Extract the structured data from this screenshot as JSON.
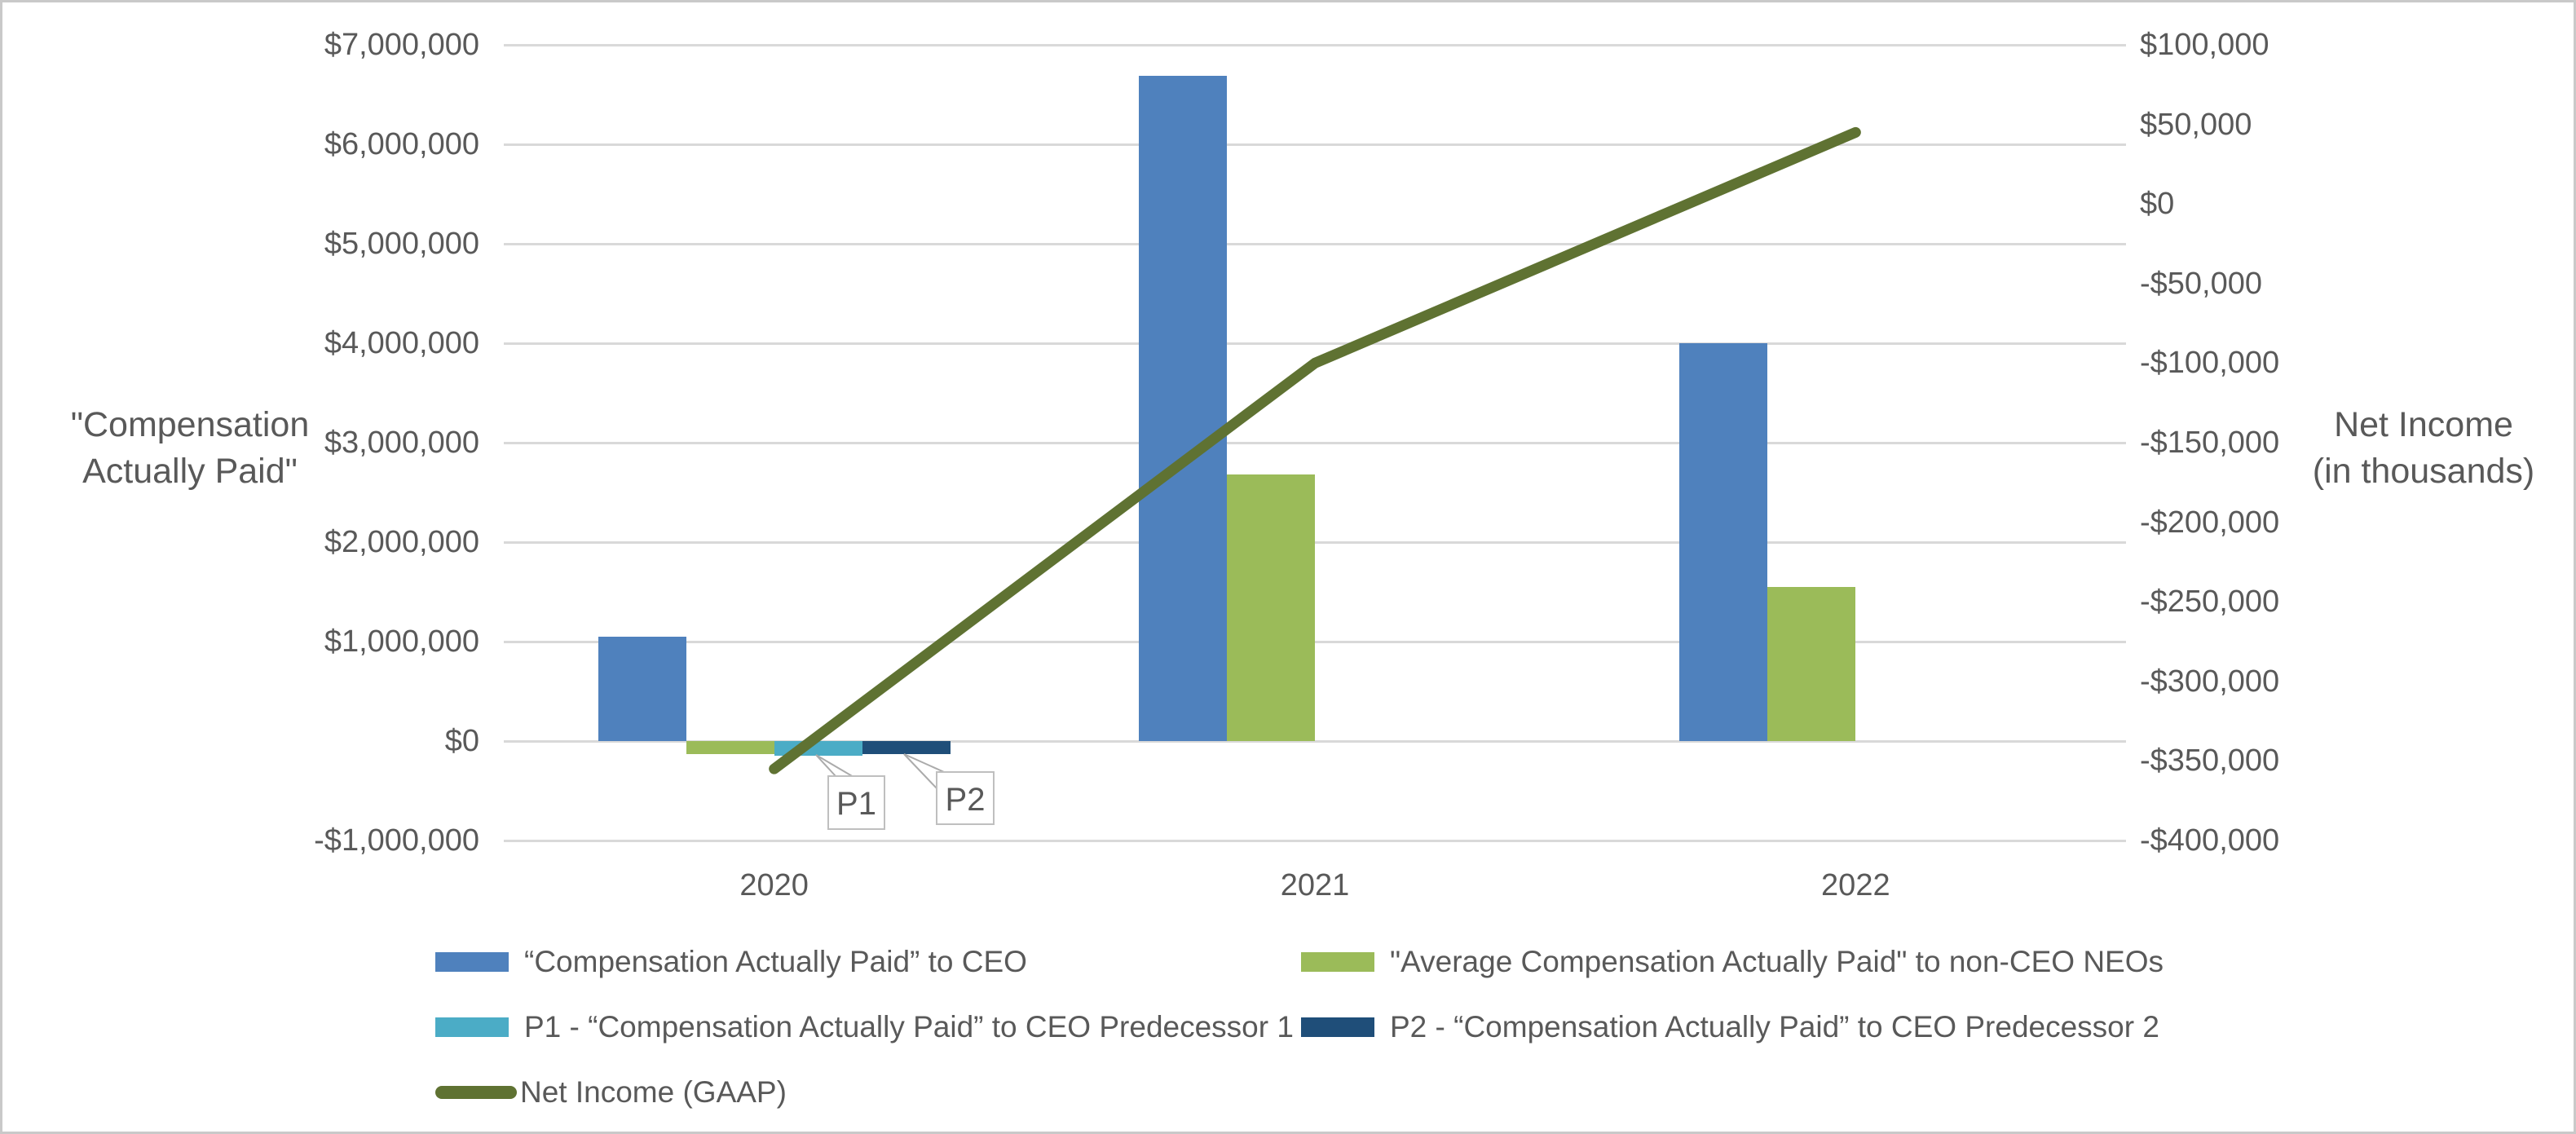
{
  "chart_data": {
    "type": "combo-bar-line",
    "categories": [
      "2020",
      "2021",
      "2022"
    ],
    "bar_series": [
      {
        "name": "“Compensation Actually Paid” to CEO",
        "color": "#4F81BD",
        "values": [
          1050000,
          6690000,
          4000000
        ]
      },
      {
        "name": "\"Average Compensation Actually Paid\" to non-CEO NEOs",
        "color": "#9BBB59",
        "values": [
          -130000,
          2680000,
          1550000
        ]
      },
      {
        "name": "P1 - “Compensation Actually Paid” to CEO Predecessor 1",
        "color": "#4BACC6",
        "values": [
          -150000,
          null,
          null
        ]
      },
      {
        "name": "P2 - “Compensation Actually Paid” to CEO Predecessor 2",
        "color": "#1F4E79",
        "values": [
          -130000,
          null,
          null
        ]
      }
    ],
    "line_series": {
      "name": "Net Income (GAAP)",
      "color": "#5F7232",
      "axis": "right",
      "values": [
        -355000,
        -100000,
        45000
      ]
    },
    "left_axis": {
      "title_line1": "\"Compensation",
      "title_line2": "Actually Paid\"",
      "max": 7000000,
      "min": -1000000,
      "ticks": [
        {
          "v": 7000000,
          "label": "$7,000,000"
        },
        {
          "v": 6000000,
          "label": "$6,000,000"
        },
        {
          "v": 5000000,
          "label": "$5,000,000"
        },
        {
          "v": 4000000,
          "label": "$4,000,000"
        },
        {
          "v": 3000000,
          "label": "$3,000,000"
        },
        {
          "v": 2000000,
          "label": "$2,000,000"
        },
        {
          "v": 1000000,
          "label": "$1,000,000"
        },
        {
          "v": 0,
          "label": "$0"
        },
        {
          "v": -1000000,
          "label": "-$1,000,000"
        }
      ]
    },
    "right_axis": {
      "title_line1": "Net Income",
      "title_line2": "(in thousands)",
      "max": 100000,
      "min": -400000,
      "ticks": [
        {
          "v": 100000,
          "label": "$100,000"
        },
        {
          "v": 50000,
          "label": "$50,000"
        },
        {
          "v": 0,
          "label": "$0"
        },
        {
          "v": -50000,
          "label": "-$50,000"
        },
        {
          "v": -100000,
          "label": "-$100,000"
        },
        {
          "v": -150000,
          "label": "-$150,000"
        },
        {
          "v": -200000,
          "label": "-$200,000"
        },
        {
          "v": -250000,
          "label": "-$250,000"
        },
        {
          "v": -300000,
          "label": "-$300,000"
        },
        {
          "v": -350000,
          "label": "-$350,000"
        },
        {
          "v": -400000,
          "label": "-$400,000"
        }
      ]
    },
    "annotations": [
      {
        "label": "P1",
        "box": {
          "x": 1012,
          "y": 948,
          "w": 71,
          "h": 67
        },
        "wedge": "998,923 1023,950 1044,950"
      },
      {
        "label": "P2",
        "box": {
          "x": 1145,
          "y": 943,
          "w": 72,
          "h": 66
        },
        "wedge": "1106,922 1146,964 1155,944"
      }
    ],
    "legend": {
      "items": [
        {
          "series": 0,
          "swatch": "rect",
          "row": 0,
          "col": 0
        },
        {
          "series": 1,
          "swatch": "rect",
          "row": 0,
          "col": 1
        },
        {
          "series": 2,
          "swatch": "rect",
          "row": 1,
          "col": 0
        },
        {
          "series": 3,
          "swatch": "rect",
          "row": 1,
          "col": 1
        },
        {
          "series": "line",
          "swatch": "line",
          "row": 2,
          "col": 0
        }
      ]
    },
    "colors": {
      "grid": "#D9D9D9",
      "text": "#595959",
      "callout_border": "#BFBFBF",
      "leader_line": "#ABABAB"
    }
  }
}
